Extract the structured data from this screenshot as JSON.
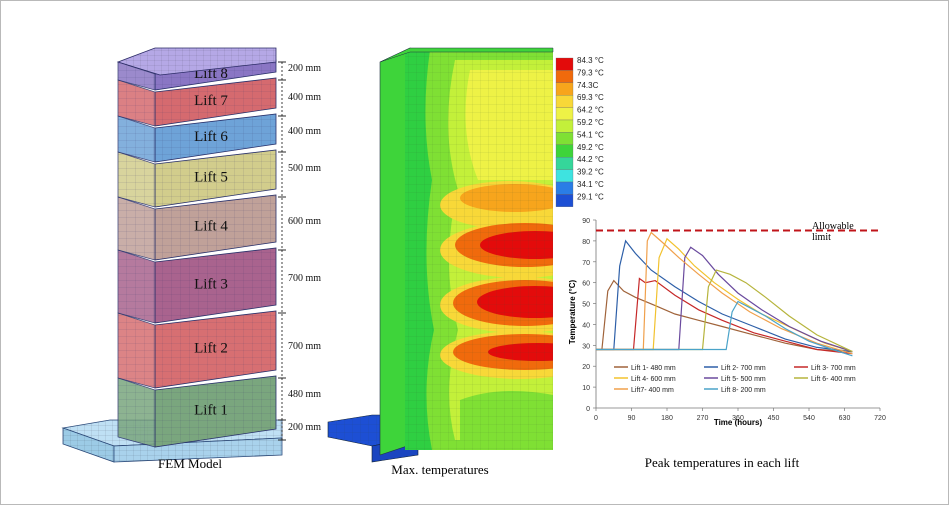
{
  "fem_model": {
    "caption": "FEM Model",
    "lifts": [
      {
        "label": "Lift 1",
        "thickness": "480 mm",
        "color": "#7aa67e"
      },
      {
        "label": "Lift 2",
        "thickness": "700 mm",
        "color": "#d76f72"
      },
      {
        "label": "Lift 3",
        "thickness": "700 mm",
        "color": "#a9638e"
      },
      {
        "label": "Lift 4",
        "thickness": "600 mm",
        "color": "#c0a199"
      },
      {
        "label": "Lift 5",
        "thickness": "500 mm",
        "color": "#d2cd8c"
      },
      {
        "label": "Lift 6",
        "thickness": "400 mm",
        "color": "#6ea3d8"
      },
      {
        "label": "Lift 7",
        "thickness": "400 mm",
        "color": "#d56a6f"
      },
      {
        "label": "Lift 8",
        "thickness": "200 mm",
        "color": "#8a76c4"
      }
    ],
    "base_thickness": "200 mm",
    "base_color": "#a9d2ec"
  },
  "max_temp": {
    "caption": "Max. temperatures",
    "legend": [
      {
        "label": "84.3 °C",
        "color": "#e30b0b"
      },
      {
        "label": "79.3 °C",
        "color": "#f06a0c"
      },
      {
        "label": "74.3C",
        "color": "#f7a51c"
      },
      {
        "label": "69.3 °C",
        "color": "#f8d838"
      },
      {
        "label": "64.2 °C",
        "color": "#eef246"
      },
      {
        "label": "59.2 °C",
        "color": "#c3f03a"
      },
      {
        "label": "54.1 °C",
        "color": "#7fe034"
      },
      {
        "label": "49.2 °C",
        "color": "#3ed43a"
      },
      {
        "label": "44.2 °C",
        "color": "#35d69a"
      },
      {
        "label": "39.2 °C",
        "color": "#3ee3e0"
      },
      {
        "label": "34.1 °C",
        "color": "#2a7de6"
      },
      {
        "label": "29.1 °C",
        "color": "#1d4fd4"
      }
    ]
  },
  "peak_chart": {
    "caption": "Peak temperatures in each lift",
    "limit_label_line1": "Allowable",
    "limit_label_line2": "limit",
    "xlabel": "Time (hours)",
    "ylabel": "Temperature (°C)",
    "x_ticks": [
      "0",
      "90",
      "180",
      "270",
      "360",
      "450",
      "540",
      "630",
      "720"
    ],
    "y_ticks": [
      "0",
      "10",
      "20",
      "30",
      "40",
      "50",
      "60",
      "70",
      "80",
      "90"
    ]
  },
  "chart_data": {
    "type": "line",
    "title": "",
    "xlabel": "Time (hours)",
    "ylabel": "Temperature (°C)",
    "xlim": [
      0,
      720
    ],
    "ylim": [
      0,
      90
    ],
    "grid": false,
    "legend_position": "bottom",
    "allowable_limit": 85,
    "series": [
      {
        "name": "Lift 1- 480 mm",
        "color": "#a0633a",
        "x": [
          0,
          15,
          30,
          45,
          70,
          100,
          150,
          200,
          260,
          320,
          400,
          480,
          560,
          650
        ],
        "y": [
          28,
          28,
          56,
          61,
          56,
          53,
          49,
          45,
          42,
          39,
          35,
          31,
          28,
          27
        ]
      },
      {
        "name": "Lift 2- 700 mm",
        "color": "#2d5fa8",
        "x": [
          0,
          45,
          60,
          75,
          100,
          140,
          200,
          260,
          320,
          400,
          480,
          560,
          650
        ],
        "y": [
          28,
          28,
          68,
          80,
          74,
          66,
          58,
          51,
          45,
          39,
          33,
          29,
          27
        ]
      },
      {
        "name": "Lift 3- 700 mm",
        "color": "#c62828",
        "x": [
          0,
          95,
          110,
          125,
          150,
          200,
          260,
          320,
          400,
          480,
          560,
          650
        ],
        "y": [
          28,
          28,
          62,
          60,
          61,
          54,
          47,
          42,
          36,
          32,
          28,
          26
        ]
      },
      {
        "name": "Lift 4- 600 mm",
        "color": "#f2c22e",
        "x": [
          0,
          145,
          160,
          180,
          210,
          250,
          300,
          360,
          420,
          500,
          580,
          650
        ],
        "y": [
          28,
          28,
          72,
          81,
          76,
          68,
          60,
          52,
          45,
          38,
          31,
          27
        ]
      },
      {
        "name": "Lift 5- 500 mm",
        "color": "#6a4a9e",
        "x": [
          0,
          210,
          225,
          240,
          270,
          310,
          360,
          420,
          490,
          570,
          650
        ],
        "y": [
          28,
          28,
          72,
          77,
          73,
          64,
          55,
          47,
          39,
          32,
          27
        ]
      },
      {
        "name": "Lift 6- 400 mm",
        "color": "#b6b43c",
        "x": [
          0,
          270,
          285,
          305,
          340,
          380,
          430,
          490,
          560,
          650
        ],
        "y": [
          28,
          28,
          58,
          66,
          64,
          60,
          53,
          44,
          35,
          27
        ]
      },
      {
        "name": "Lift7- 400 mm",
        "color": "#f0a04b",
        "x": [
          0,
          120,
          130,
          140,
          170,
          210,
          260,
          320,
          390,
          470,
          560,
          650
        ],
        "y": [
          28,
          28,
          80,
          84,
          79,
          72,
          64,
          55,
          46,
          38,
          31,
          26
        ]
      },
      {
        "name": "Lift 8- 200 mm",
        "color": "#4aa3c9",
        "x": [
          0,
          330,
          345,
          360,
          390,
          430,
          480,
          540,
          600,
          650
        ],
        "y": [
          28,
          28,
          46,
          51,
          48,
          44,
          38,
          32,
          28,
          25
        ]
      }
    ]
  }
}
